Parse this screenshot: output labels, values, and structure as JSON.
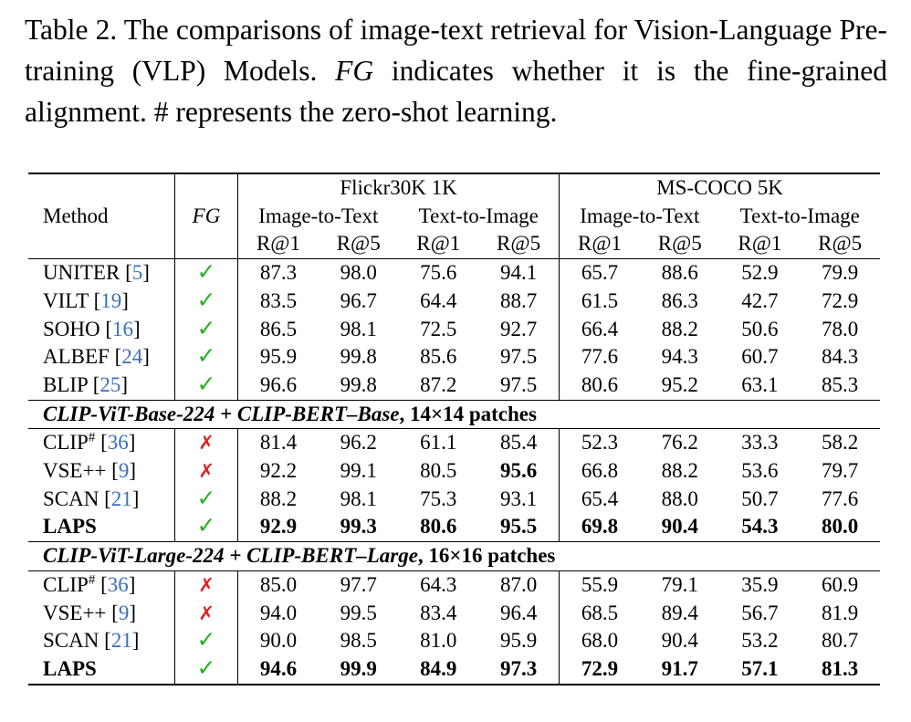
{
  "caption": {
    "part1": "Table 2.  The comparisons of image-text retrieval for Vision-Language Pre-training (VLP) Models.  ",
    "fg_symbol": "FG",
    "part2": " indicates whether it is the fine-grained alignment. # represents the zero-shot learning."
  },
  "header": {
    "method": "Method",
    "fg": "FG",
    "flickr": "Flickr30K 1K",
    "coco": "MS-COCO 5K",
    "i2t": "Image-to-Text",
    "t2i": "Text-to-Image",
    "r1": "R@1",
    "r5": "R@5"
  },
  "symbols": {
    "check": "✓",
    "cross": "✗",
    "open_bracket": "[",
    "close_bracket": "]",
    "hash": "#"
  },
  "rows_vlp": [
    {
      "name": "UNITER",
      "ref": "5",
      "fg": true,
      "values": [
        "87.3",
        "98.0",
        "75.6",
        "94.1",
        "65.7",
        "88.6",
        "52.9",
        "79.9"
      ]
    },
    {
      "name": "VILT",
      "ref": "19",
      "fg": true,
      "values": [
        "83.5",
        "96.7",
        "64.4",
        "88.7",
        "61.5",
        "86.3",
        "42.7",
        "72.9"
      ]
    },
    {
      "name": "SOHO",
      "ref": "16",
      "fg": true,
      "values": [
        "86.5",
        "98.1",
        "72.5",
        "92.7",
        "66.4",
        "88.2",
        "50.6",
        "78.0"
      ]
    },
    {
      "name": "ALBEF",
      "ref": "24",
      "fg": true,
      "values": [
        "95.9",
        "99.8",
        "85.6",
        "97.5",
        "77.6",
        "94.3",
        "60.7",
        "84.3"
      ]
    },
    {
      "name": "BLIP",
      "ref": "25",
      "fg": true,
      "values": [
        "96.6",
        "99.8",
        "87.2",
        "97.5",
        "80.6",
        "95.2",
        "63.1",
        "85.3"
      ]
    }
  ],
  "section_base": {
    "bold_italic": "CLIP-ViT-Base-224 + CLIP-BERT–Base",
    "rest": ", 14×14 patches"
  },
  "rows_base": [
    {
      "name": "CLIP",
      "sup": "#",
      "ref": "36",
      "fg": false,
      "values": [
        "81.4",
        "96.2",
        "61.1",
        "85.4",
        "52.3",
        "76.2",
        "33.3",
        "58.2"
      ]
    },
    {
      "name": "VSE++",
      "ref": "9",
      "fg": false,
      "values": [
        "92.2",
        "99.1",
        "80.5",
        "95.6",
        "66.8",
        "88.2",
        "53.6",
        "79.7"
      ]
    },
    {
      "name": "SCAN",
      "ref": "21",
      "fg": true,
      "values": [
        "88.2",
        "98.1",
        "75.3",
        "93.1",
        "65.4",
        "88.0",
        "50.7",
        "77.6"
      ]
    },
    {
      "name": "LAPS",
      "fg": true,
      "values": [
        "92.9",
        "99.3",
        "80.6",
        "95.5",
        "69.8",
        "90.4",
        "54.3",
        "80.0"
      ]
    }
  ],
  "section_large": {
    "bold_italic": "CLIP-ViT-Large-224 + CLIP-BERT–Large",
    "rest": ", 16×16 patches"
  },
  "rows_large": [
    {
      "name": "CLIP",
      "sup": "#",
      "ref": "36",
      "fg": false,
      "values": [
        "85.0",
        "97.7",
        "64.3",
        "87.0",
        "55.9",
        "79.1",
        "35.9",
        "60.9"
      ]
    },
    {
      "name": "VSE++",
      "ref": "9",
      "fg": false,
      "values": [
        "94.0",
        "99.5",
        "83.4",
        "96.4",
        "68.5",
        "89.4",
        "56.7",
        "81.9"
      ]
    },
    {
      "name": "SCAN",
      "ref": "21",
      "fg": true,
      "values": [
        "90.0",
        "98.5",
        "81.0",
        "95.9",
        "68.0",
        "90.4",
        "53.2",
        "80.7"
      ]
    },
    {
      "name": "LAPS",
      "fg": true,
      "values": [
        "94.6",
        "99.9",
        "84.9",
        "97.3",
        "72.9",
        "91.7",
        "57.1",
        "81.3"
      ]
    }
  ]
}
